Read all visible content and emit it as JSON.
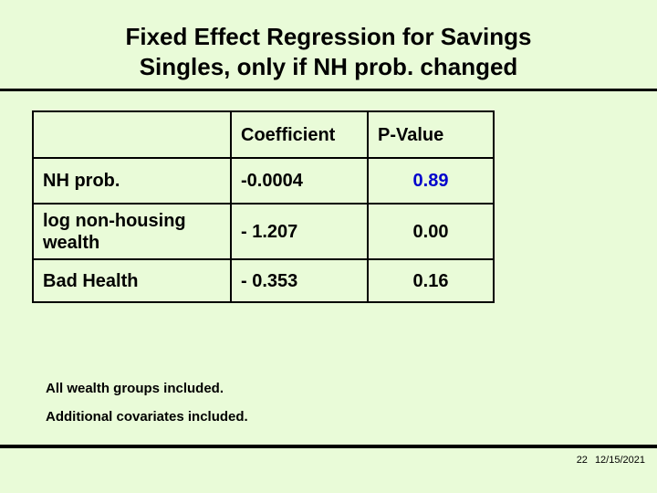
{
  "slide": {
    "title_line1": "Fixed Effect Regression for Savings",
    "title_line2": "Singles, only if NH prob. changed",
    "table": {
      "header": [
        "",
        "Coefficient",
        "P-Value"
      ],
      "rows": [
        {
          "label": "NH prob.",
          "coefficient": "-0.0004",
          "p_value": "0.89",
          "p_value_color": "#0000CC"
        },
        {
          "label": "log non-housing wealth",
          "coefficient": "- 1.207",
          "p_value": "0.00",
          "p_value_color": "#000000"
        },
        {
          "label": "Bad Health",
          "coefficient": "- 0.353",
          "p_value": "0.16",
          "p_value_color": "#000000"
        }
      ]
    },
    "notes": [
      "All wealth groups included.",
      "Additional covariates included."
    ],
    "footer": {
      "slide_number": "22",
      "date": "12/15/2021"
    },
    "colors": {
      "background": "#E9FBD8",
      "text": "#000000",
      "highlight_blue": "#0000CC",
      "line": "#000000"
    }
  }
}
